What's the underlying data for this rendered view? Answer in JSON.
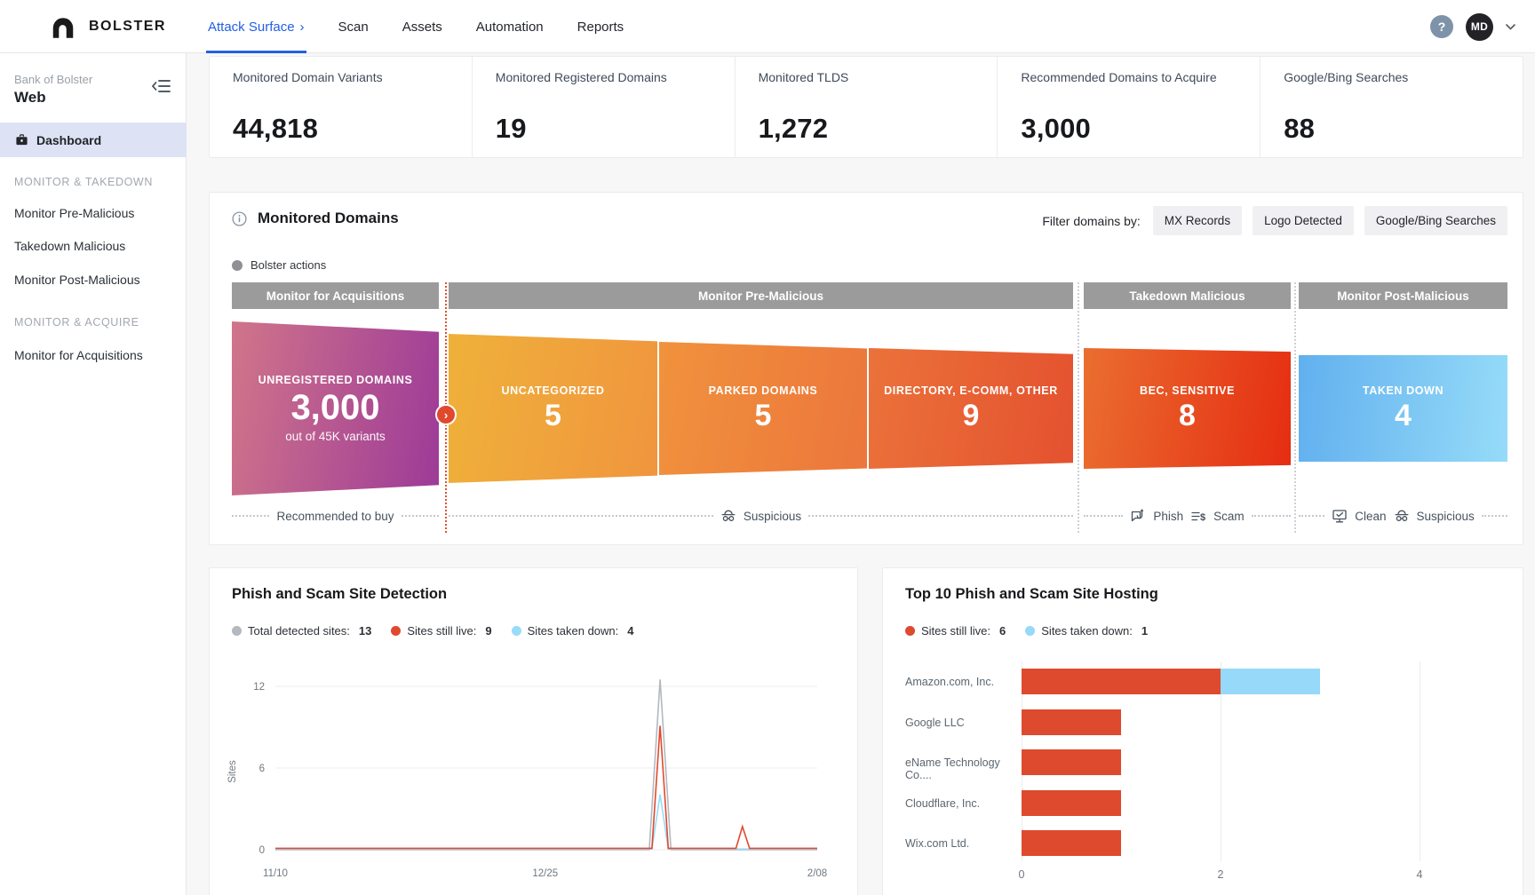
{
  "nav": {
    "brand": "BOLSTER",
    "items": [
      {
        "label": "Attack Surface"
      },
      {
        "label": "Scan"
      },
      {
        "label": "Assets"
      },
      {
        "label": "Automation"
      },
      {
        "label": "Reports"
      }
    ],
    "help": "?",
    "avatar": "MD"
  },
  "sidebar": {
    "org": "Bank of Bolster",
    "workspace": "Web",
    "dashboard": "Dashboard",
    "sections": [
      {
        "title": "MONITOR & TAKEDOWN",
        "items": [
          "Monitor Pre-Malicious",
          "Takedown Malicious",
          "Monitor Post-Malicious"
        ]
      },
      {
        "title": "MONITOR & ACQUIRE",
        "items": [
          "Monitor for Acquisitions"
        ]
      }
    ]
  },
  "stats": [
    {
      "label": "Monitored Domain Variants",
      "value": "44,818"
    },
    {
      "label": "Monitored Registered Domains",
      "value": "19"
    },
    {
      "label": "Monitored TLDS",
      "value": "1,272"
    },
    {
      "label": "Recommended Domains to Acquire",
      "value": "3,000"
    },
    {
      "label": "Google/Bing Searches",
      "value": "88"
    }
  ],
  "monitored_domains": {
    "title": "Monitored Domains",
    "filter_label": "Filter domains by:",
    "filters": [
      "MX Records",
      "Logo Detected",
      "Google/Bing Searches"
    ],
    "actions_legend": "Bolster actions",
    "chevron": "›",
    "stages": [
      {
        "header": "Monitor for Acquisitions",
        "blocks": [
          {
            "label": "UNREGISTERED DOMAINS",
            "value": "3,000",
            "sub": "out of 45K variants"
          }
        ],
        "footer": [
          {
            "label": "Recommended to buy"
          }
        ]
      },
      {
        "header": "Monitor Pre-Malicious",
        "blocks": [
          {
            "label": "UNCATEGORIZED",
            "value": "5"
          },
          {
            "label": "PARKED DOMAINS",
            "value": "5"
          },
          {
            "label": "DIRECTORY, E-COMM, OTHER",
            "value": "9"
          }
        ],
        "footer": [
          {
            "icon": "suspicious",
            "label": "Suspicious"
          }
        ]
      },
      {
        "header": "Takedown Malicious",
        "blocks": [
          {
            "label": "BEC, SENSITIVE",
            "value": "8"
          }
        ],
        "footer": [
          {
            "icon": "phish",
            "label": "Phish"
          },
          {
            "icon": "scam",
            "label": "Scam"
          }
        ]
      },
      {
        "header": "Monitor Post-Malicious",
        "blocks": [
          {
            "label": "TAKEN DOWN",
            "value": "4"
          }
        ],
        "footer": [
          {
            "icon": "clean",
            "label": "Clean"
          },
          {
            "icon": "suspicious",
            "label": "Suspicious"
          }
        ]
      }
    ]
  },
  "chart_data": [
    {
      "type": "line",
      "title": "Phish and Scam Site Detection",
      "ylabel": "Sites",
      "ylim": [
        0,
        13
      ],
      "y_ticks": [
        12,
        6,
        0
      ],
      "x_ticks": [
        "11/10",
        "12/25",
        "2/08"
      ],
      "grid": true,
      "legend_position": "top",
      "legend": [
        {
          "label": "Total detected sites:",
          "value": "13",
          "color": "#b4b8bf"
        },
        {
          "label": "Sites still live:",
          "value": "9",
          "color": "#e0492e"
        },
        {
          "label": "Sites taken down:",
          "value": "4",
          "color": "#99dcf8"
        }
      ],
      "series": [
        {
          "name": "Total detected sites",
          "color": "#b4b8bf",
          "points": [
            [
              0,
              0
            ],
            [
              0.69,
              0
            ],
            [
              0.71,
              12.5
            ],
            [
              0.73,
              0
            ],
            [
              1,
              0
            ]
          ]
        },
        {
          "name": "Sites taken down",
          "color": "#99dcf8",
          "points": [
            [
              0,
              0
            ],
            [
              0.695,
              0
            ],
            [
              0.71,
              4
            ],
            [
              0.725,
              0
            ],
            [
              1,
              0
            ]
          ]
        },
        {
          "name": "Sites still live",
          "color": "#e0492e",
          "points": [
            [
              0,
              0
            ],
            [
              0.695,
              0
            ],
            [
              0.71,
              9
            ],
            [
              0.725,
              0
            ],
            [
              0.85,
              0
            ],
            [
              0.862,
              1.6
            ],
            [
              0.875,
              0
            ],
            [
              1,
              0
            ]
          ]
        }
      ]
    },
    {
      "type": "bar",
      "orientation": "horizontal",
      "title": "Top 10 Phish and Scam Site Hosting",
      "categories": [
        "Amazon.com, Inc.",
        "Google LLC",
        "eName Technology Co....",
        "Cloudflare, Inc.",
        "Wix.com Ltd."
      ],
      "series": [
        {
          "name": "Sites still live",
          "color": "#de4a2e",
          "values": [
            2,
            1,
            1,
            1,
            1
          ]
        },
        {
          "name": "Sites taken down",
          "color": "#96d9f8",
          "values": [
            1,
            0,
            0,
            0,
            0
          ]
        }
      ],
      "legend": [
        {
          "label": "Sites still live:",
          "value": "6",
          "color": "#de4a2e"
        },
        {
          "label": "Sites taken down:",
          "value": "1",
          "color": "#96d9f8"
        }
      ],
      "x_ticks": [
        0,
        2,
        4
      ],
      "xlim": [
        0,
        4.8
      ],
      "grid": true
    }
  ]
}
